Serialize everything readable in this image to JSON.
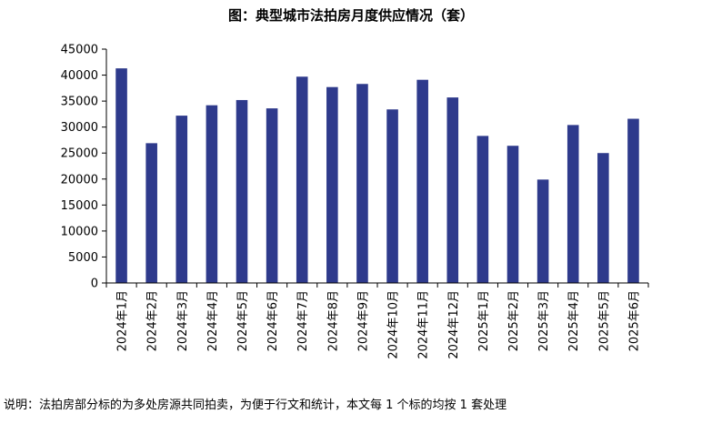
{
  "chart_data": {
    "type": "bar",
    "title": "图：典型城市法拍房月度供应情况（套）",
    "xlabel": "",
    "ylabel": "",
    "ylim": [
      0,
      45000
    ],
    "yticks": [
      0,
      5000,
      10000,
      15000,
      20000,
      25000,
      30000,
      35000,
      40000,
      45000
    ],
    "grid": false,
    "bar_color": "#2E3A8C",
    "categories": [
      "2024年1月",
      "2024年2月",
      "2024年3月",
      "2024年4月",
      "2024年5月",
      "2024年6月",
      "2024年7月",
      "2024年8月",
      "2024年9月",
      "2024年10月",
      "2024年11月",
      "2024年12月",
      "2025年1月",
      "2025年2月",
      "2025年3月",
      "2025年4月",
      "2025年5月",
      "2025年6月"
    ],
    "values": [
      41300,
      26900,
      32200,
      34200,
      35200,
      33600,
      39700,
      37700,
      38300,
      33400,
      39100,
      35700,
      28300,
      26400,
      19900,
      30400,
      25000,
      31600
    ]
  },
  "footnote": "说明：法拍房部分标的为多处房源共同拍卖，为便于行文和统计，本文每 1 个标的均按 1 套处理"
}
